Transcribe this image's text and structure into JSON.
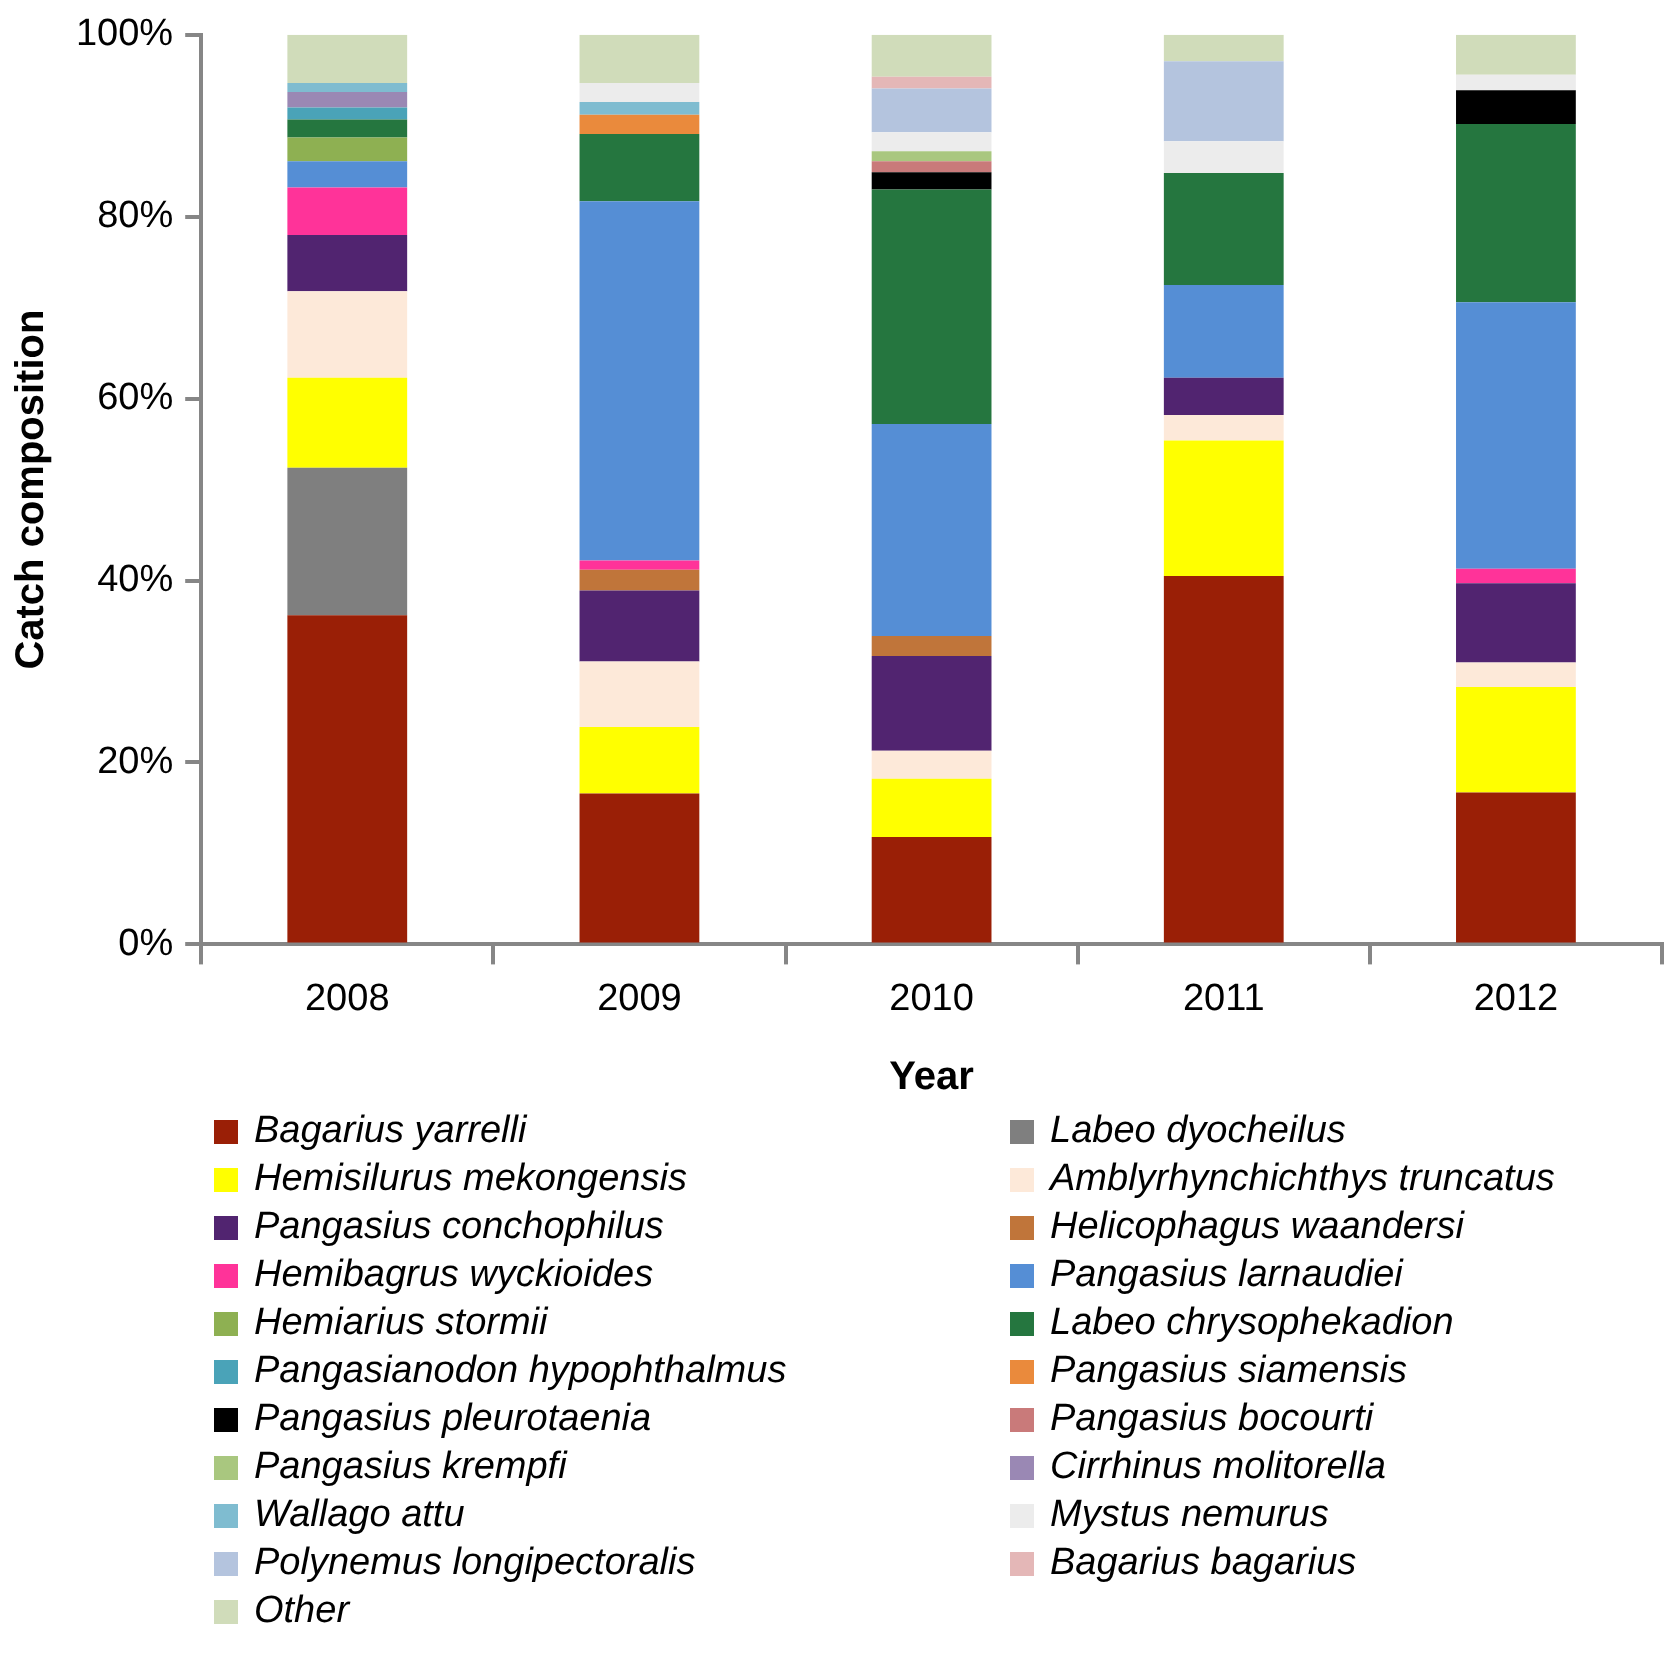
{
  "chart_data": {
    "type": "bar",
    "stacked": true,
    "xlabel": "Year",
    "ylabel": "Catch composition",
    "categories": [
      "2008",
      "2009",
      "2010",
      "2011",
      "2012"
    ],
    "ylim": [
      0,
      100
    ],
    "yticks": [
      {
        "value": 0,
        "label": "0%"
      },
      {
        "value": 20,
        "label": "20%"
      },
      {
        "value": 40,
        "label": "40%"
      },
      {
        "value": 60,
        "label": "60%"
      },
      {
        "value": 80,
        "label": "80%"
      },
      {
        "value": 100,
        "label": "100%"
      }
    ],
    "grid": false,
    "legend": "bottom",
    "series": [
      {
        "name": "Bagarius yarrelli",
        "color": "#9a1f06",
        "values": [
          36.2,
          16.6,
          11.8,
          40.5,
          16.7
        ]
      },
      {
        "name": "Labeo dyocheilus",
        "color": "#7f7f7f",
        "values": [
          16.2,
          null,
          null,
          null,
          null
        ]
      },
      {
        "name": "Hemisilurus mekongensis",
        "color": "#ffff00",
        "values": [
          9.9,
          7.3,
          6.4,
          14.9,
          11.6
        ]
      },
      {
        "name": "Amblyrhynchichthys truncatus",
        "color": "#fde9d9",
        "values": [
          9.5,
          7.2,
          3.1,
          2.8,
          2.7
        ]
      },
      {
        "name": "Pangasius conchophilus",
        "color": "#512470",
        "values": [
          6.2,
          7.8,
          10.4,
          4.1,
          8.7
        ]
      },
      {
        "name": "Helicophagus waandersi",
        "color": "#c0753a",
        "values": [
          null,
          2.3,
          2.2,
          null,
          null
        ]
      },
      {
        "name": "Hemibagrus wyckioides",
        "color": "#ff3399",
        "values": [
          5.2,
          1.0,
          null,
          null,
          1.6
        ]
      },
      {
        "name": "Pangasius larnaudiei",
        "color": "#558ed5",
        "values": [
          2.9,
          39.5,
          23.3,
          10.2,
          29.3
        ]
      },
      {
        "name": "Hemiarius stormii",
        "color": "#8eb052",
        "values": [
          2.6,
          null,
          null,
          null,
          null
        ]
      },
      {
        "name": "Labeo chrysophekadion",
        "color": "#25763f",
        "values": [
          2.0,
          7.4,
          25.8,
          12.3,
          19.6
        ]
      },
      {
        "name": "Pangasianodon hypophthalmus",
        "color": "#4aa3b8",
        "values": [
          1.3,
          null,
          null,
          null,
          null
        ]
      },
      {
        "name": "Pangasius siamensis",
        "color": "#ea8a3c",
        "values": [
          null,
          2.1,
          null,
          null,
          null
        ]
      },
      {
        "name": "Pangasius pleurotaenia",
        "color": "#000000",
        "values": [
          null,
          null,
          1.9,
          null,
          3.7
        ]
      },
      {
        "name": "Pangasius bocourti",
        "color": "#c97a7a",
        "values": [
          null,
          null,
          1.2,
          null,
          null
        ]
      },
      {
        "name": "Pangasius krempfi",
        "color": "#a9c77f",
        "values": [
          null,
          null,
          1.1,
          null,
          null
        ]
      },
      {
        "name": "Cirrhinus molitorella",
        "color": "#9a88b4",
        "values": [
          1.7,
          null,
          null,
          null,
          null
        ]
      },
      {
        "name": "Wallago attu",
        "color": "#7fbcd0",
        "values": [
          1.0,
          1.4,
          null,
          null,
          null
        ]
      },
      {
        "name": "Mystus nemurus",
        "color": "#ececec",
        "values": [
          null,
          2.1,
          2.1,
          3.5,
          1.7
        ]
      },
      {
        "name": "Polynemus longipectoralis",
        "color": "#b4c4de",
        "values": [
          null,
          null,
          4.8,
          8.8,
          null
        ]
      },
      {
        "name": "Bagarius bagarius",
        "color": "#e4b7b7",
        "values": [
          null,
          null,
          1.3,
          null,
          null
        ]
      },
      {
        "name": "Other",
        "color": "#d0dcba",
        "values": [
          5.3,
          5.3,
          4.6,
          2.9,
          4.4
        ]
      }
    ]
  }
}
